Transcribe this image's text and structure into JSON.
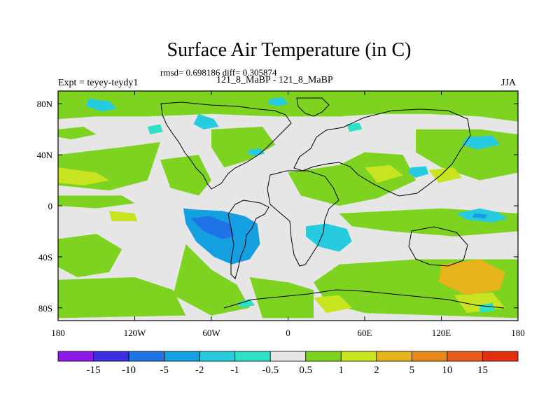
{
  "chart_data": {
    "type": "heatmap",
    "title": "Surface Air Temperature (in C)",
    "stats": "rmsd= 0.698186 diff= 0.305874",
    "left_label": "Expt = teyey-teydy1",
    "center_label": "121_8_MaBP - 121_8_MaBP",
    "right_label": "JJA",
    "x_ticks": [
      "180",
      "120W",
      "60W",
      "0",
      "60E",
      "120E",
      "180"
    ],
    "y_ticks": [
      "80N",
      "40N",
      "0",
      "40S",
      "80S"
    ],
    "lon_range": [
      -180,
      180
    ],
    "lat_range": [
      -90,
      90
    ],
    "colorbar": {
      "labels": [
        "-15",
        "-10",
        "-5",
        "-2",
        "-1",
        "-0.5",
        "0.5",
        "1",
        "2",
        "5",
        "10",
        "15"
      ],
      "colors": [
        "#8c1ae6",
        "#3a2ee0",
        "#1f73e6",
        "#139fe0",
        "#26cbe0",
        "#2ee0c6",
        "#e6e6e6",
        "#7ed321",
        "#c8e320",
        "#e6b41a",
        "#e6881a",
        "#e65c1a",
        "#e0300f"
      ]
    },
    "regions": [
      {
        "label": "-2",
        "points": [
          [
            -82,
            -2
          ],
          [
            -72,
            -3
          ],
          [
            -52,
            -4
          ],
          [
            -34,
            -8
          ],
          [
            -24,
            -14
          ],
          [
            -22,
            -30
          ],
          [
            -30,
            -42
          ],
          [
            -44,
            -46
          ],
          [
            -58,
            -40
          ],
          [
            -72,
            -28
          ],
          [
            -80,
            -14
          ]
        ]
      },
      {
        "label": "-5",
        "points": [
          [
            -76,
            -10
          ],
          [
            -62,
            -8
          ],
          [
            -46,
            -14
          ],
          [
            -42,
            -24
          ],
          [
            -52,
            -26
          ],
          [
            -66,
            -20
          ]
        ]
      },
      {
        "label": "-1",
        "points": [
          [
            14,
            -16
          ],
          [
            30,
            -14
          ],
          [
            46,
            -18
          ],
          [
            50,
            -28
          ],
          [
            40,
            -36
          ],
          [
            24,
            -32
          ],
          [
            14,
            -24
          ]
        ]
      },
      {
        "label": "-1",
        "points": [
          [
            150,
            -2
          ],
          [
            164,
            -5
          ],
          [
            172,
            -10
          ],
          [
            160,
            -13
          ],
          [
            140,
            -11
          ],
          [
            132,
            -6
          ]
        ]
      },
      {
        "label": "-2",
        "points": [
          [
            146,
            -6
          ],
          [
            156,
            -7
          ],
          [
            154,
            -10
          ],
          [
            144,
            -9
          ]
        ]
      },
      {
        "label": "-1",
        "points": [
          [
            -156,
            84
          ],
          [
            -140,
            82
          ],
          [
            -134,
            76
          ],
          [
            -146,
            74
          ],
          [
            -158,
            78
          ]
        ]
      },
      {
        "label": "-1",
        "points": [
          [
            -70,
            72
          ],
          [
            -58,
            68
          ],
          [
            -54,
            62
          ],
          [
            -66,
            60
          ],
          [
            -74,
            64
          ]
        ]
      },
      {
        "label": "-1",
        "points": [
          [
            140,
            54
          ],
          [
            160,
            55
          ],
          [
            166,
            48
          ],
          [
            148,
            44
          ],
          [
            136,
            48
          ]
        ]
      },
      {
        "label": "-1",
        "points": [
          [
            96,
            30
          ],
          [
            108,
            31
          ],
          [
            110,
            25
          ],
          [
            100,
            22
          ],
          [
            94,
            26
          ]
        ]
      },
      {
        "label": "-1",
        "points": [
          [
            -30,
            44
          ],
          [
            -22,
            45
          ],
          [
            -18,
            41
          ],
          [
            -26,
            39
          ],
          [
            -32,
            41
          ]
        ]
      },
      {
        "label": "-1",
        "points": [
          [
            -14,
            84
          ],
          [
            -4,
            85
          ],
          [
            0,
            80
          ],
          [
            -8,
            78
          ],
          [
            -16,
            80
          ]
        ]
      },
      {
        "label": "-0.5",
        "points": [
          [
            -40,
            -76
          ],
          [
            -30,
            -73
          ],
          [
            -26,
            -78
          ],
          [
            -36,
            -80
          ]
        ]
      },
      {
        "label": "-0.5",
        "points": [
          [
            -110,
            62
          ],
          [
            -100,
            64
          ],
          [
            -98,
            58
          ],
          [
            -108,
            56
          ]
        ]
      },
      {
        "label": "-0.5",
        "points": [
          [
            46,
            64
          ],
          [
            56,
            65
          ],
          [
            58,
            60
          ],
          [
            48,
            58
          ]
        ]
      },
      {
        "label": "-0.5",
        "points": [
          [
            150,
            -78
          ],
          [
            160,
            -76
          ],
          [
            162,
            -82
          ],
          [
            150,
            -84
          ]
        ]
      },
      {
        "label": "1",
        "points": [
          [
            -180,
            90
          ],
          [
            180,
            90
          ],
          [
            180,
            66
          ],
          [
            150,
            70
          ],
          [
            110,
            72
          ],
          [
            70,
            72
          ],
          [
            40,
            70
          ],
          [
            -10,
            70
          ],
          [
            -60,
            72
          ],
          [
            -110,
            70
          ],
          [
            -150,
            70
          ],
          [
            -180,
            68
          ]
        ]
      },
      {
        "label": "1",
        "points": [
          [
            -180,
            40
          ],
          [
            -130,
            46
          ],
          [
            -100,
            50
          ],
          [
            -110,
            20
          ],
          [
            -140,
            12
          ],
          [
            -180,
            16
          ]
        ]
      },
      {
        "label": "1",
        "points": [
          [
            -180,
            60
          ],
          [
            -160,
            62
          ],
          [
            -150,
            56
          ],
          [
            -170,
            52
          ],
          [
            -180,
            54
          ]
        ]
      },
      {
        "label": "1",
        "points": [
          [
            -180,
            8
          ],
          [
            -130,
            8
          ],
          [
            -120,
            2
          ],
          [
            -150,
            -2
          ],
          [
            -180,
            0
          ]
        ]
      },
      {
        "label": "1",
        "points": [
          [
            -60,
            60
          ],
          [
            -20,
            62
          ],
          [
            -10,
            48
          ],
          [
            -30,
            36
          ],
          [
            -50,
            30
          ],
          [
            -60,
            46
          ]
        ]
      },
      {
        "label": "1",
        "points": [
          [
            -100,
            36
          ],
          [
            -70,
            40
          ],
          [
            -60,
            20
          ],
          [
            -70,
            8
          ],
          [
            -92,
            14
          ]
        ]
      },
      {
        "label": "1",
        "points": [
          [
            0,
            26
          ],
          [
            40,
            32
          ],
          [
            60,
            42
          ],
          [
            90,
            40
          ],
          [
            100,
            20
          ],
          [
            70,
            6
          ],
          [
            40,
            0
          ],
          [
            10,
            8
          ]
        ]
      },
      {
        "label": "1",
        "points": [
          [
            100,
            60
          ],
          [
            150,
            60
          ],
          [
            180,
            56
          ],
          [
            180,
            26
          ],
          [
            150,
            20
          ],
          [
            120,
            30
          ],
          [
            100,
            42
          ]
        ]
      },
      {
        "label": "1",
        "points": [
          [
            40,
            -6
          ],
          [
            80,
            -4
          ],
          [
            120,
            -2
          ],
          [
            180,
            -6
          ],
          [
            180,
            -20
          ],
          [
            130,
            -24
          ],
          [
            80,
            -20
          ],
          [
            50,
            -16
          ]
        ]
      },
      {
        "label": "1",
        "points": [
          [
            -180,
            -26
          ],
          [
            -150,
            -22
          ],
          [
            -130,
            -34
          ],
          [
            -140,
            -52
          ],
          [
            -165,
            -56
          ],
          [
            -180,
            -48
          ]
        ]
      },
      {
        "label": "1",
        "points": [
          [
            -180,
            -58
          ],
          [
            -120,
            -56
          ],
          [
            -90,
            -66
          ],
          [
            -80,
            -86
          ],
          [
            -180,
            -88
          ]
        ]
      },
      {
        "label": "1",
        "points": [
          [
            -80,
            -30
          ],
          [
            -60,
            -50
          ],
          [
            -40,
            -62
          ],
          [
            -30,
            -80
          ],
          [
            -60,
            -86
          ],
          [
            -90,
            -70
          ]
        ]
      },
      {
        "label": "1",
        "points": [
          [
            40,
            -46
          ],
          [
            100,
            -42
          ],
          [
            180,
            -42
          ],
          [
            180,
            -88
          ],
          [
            120,
            -86
          ],
          [
            60,
            -84
          ],
          [
            30,
            -76
          ],
          [
            20,
            -60
          ]
        ]
      },
      {
        "label": "1",
        "points": [
          [
            -30,
            -56
          ],
          [
            0,
            -60
          ],
          [
            20,
            -66
          ],
          [
            20,
            -88
          ],
          [
            -20,
            -88
          ]
        ]
      },
      {
        "label": "2",
        "points": [
          [
            -180,
            30
          ],
          [
            -150,
            26
          ],
          [
            -140,
            20
          ],
          [
            -160,
            16
          ],
          [
            -180,
            18
          ]
        ]
      },
      {
        "label": "2",
        "points": [
          [
            -140,
            -4
          ],
          [
            -120,
            -6
          ],
          [
            -118,
            -12
          ],
          [
            -138,
            -12
          ]
        ]
      },
      {
        "label": "2",
        "points": [
          [
            60,
            30
          ],
          [
            80,
            32
          ],
          [
            90,
            24
          ],
          [
            70,
            18
          ]
        ]
      },
      {
        "label": "2",
        "points": [
          [
            20,
            -72
          ],
          [
            40,
            -70
          ],
          [
            50,
            -80
          ],
          [
            30,
            -84
          ]
        ]
      },
      {
        "label": "2",
        "points": [
          [
            110,
            28
          ],
          [
            130,
            30
          ],
          [
            136,
            22
          ],
          [
            118,
            18
          ]
        ]
      },
      {
        "label": "2",
        "points": [
          [
            130,
            -70
          ],
          [
            160,
            -68
          ],
          [
            170,
            -80
          ],
          [
            140,
            -84
          ]
        ]
      },
      {
        "label": "5",
        "points": [
          [
            120,
            -46
          ],
          [
            150,
            -42
          ],
          [
            170,
            -52
          ],
          [
            166,
            -66
          ],
          [
            140,
            -70
          ],
          [
            118,
            -60
          ]
        ]
      }
    ]
  }
}
